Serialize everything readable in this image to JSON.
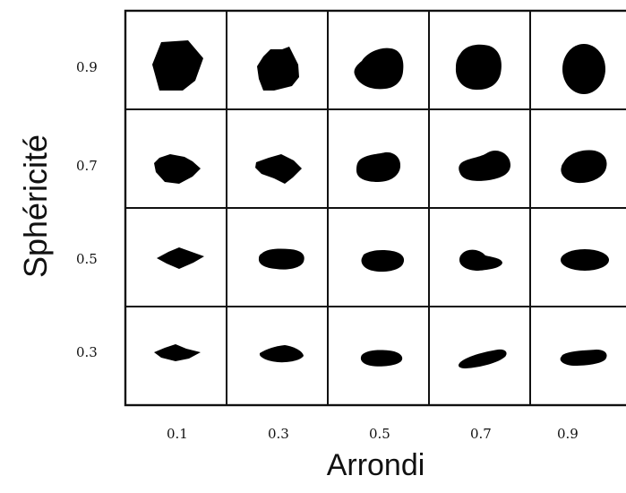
{
  "figure": {
    "y_axis_title": "Sphéricité",
    "x_axis_title": "Arrondi",
    "row_labels": [
      "0.9",
      "0.7",
      "0.5",
      "0.3"
    ],
    "col_labels": [
      "0.1",
      "0.3",
      "0.5",
      "0.7",
      "0.9"
    ],
    "grain_color": "#000000",
    "border_color": "#111111",
    "background_color": "#ffffff"
  }
}
